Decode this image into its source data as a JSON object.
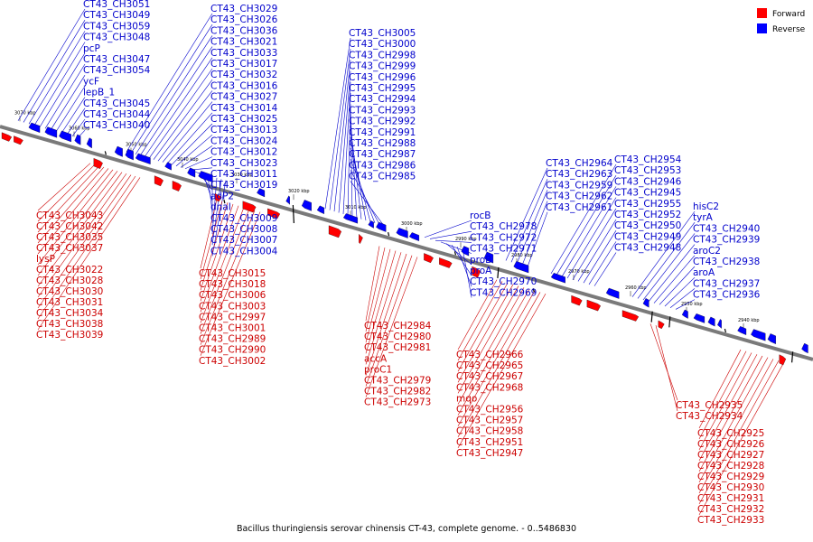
{
  "caption": "Bacillus thuringiensis serovar chinensis CT-43, complete genome. - 0..5486830",
  "legend": {
    "forward": "Forward",
    "reverse": "Reverse",
    "forward_color": "#ff0000",
    "reverse_color": "#0000ff"
  },
  "colors": {
    "forward_label": "#cc0000",
    "reverse_label": "#0000cc",
    "backbone": "#7a7a7a"
  },
  "ticks": [
    "3070 kbp",
    "3060 kbp",
    "3050 kbp",
    "3040 kbp",
    "3030 kbp",
    "3020 kbp",
    "3010 kbp",
    "3000 kbp",
    "2990 kbp",
    "2980 kbp",
    "2970 kbp",
    "2960 kbp",
    "2950 kbp",
    "2940 kbp"
  ],
  "top_labels": [
    "CT43_CH3051",
    "CT43_CH3049",
    "CT43_CH3059",
    "CT43_CH3048",
    "pcP",
    "CT43_CH3047",
    "CT43_CH3054",
    "ycF",
    "lepB_1",
    "CT43_CH3045",
    "CT43_CH3044",
    "CT43_CH3040",
    "CT43_CH3029",
    "CT43_CH3026",
    "CT43_CH3036",
    "CT43_CH3021",
    "CT43_CH3033",
    "CT43_CH3017",
    "CT43_CH3032",
    "CT43_CH3016",
    "CT43_CH3027",
    "CT43_CH3014",
    "CT43_CH3025",
    "CT43_CH3013",
    "CT43_CH3024",
    "CT43_CH3012",
    "CT43_CH3023",
    "CT43_CH3011",
    "CT43_CH3019",
    "adP2",
    "dnaI",
    "CT43_CH3009",
    "CT43_CH3008",
    "CT43_CH3007",
    "CT43_CH3004",
    "CT43_CH3005",
    "CT43_CH3000",
    "CT43_CH2998",
    "CT43_CH2999",
    "CT43_CH2996",
    "CT43_CH2995",
    "CT43_CH2994",
    "CT43_CH2993",
    "CT43_CH2992",
    "CT43_CH2991",
    "CT43_CH2988",
    "CT43_CH2987",
    "CT43_CH2986",
    "CT43_CH2985",
    "rocB",
    "CT43_CH2978",
    "CT43_CH2972",
    "CT43_CH2971",
    "proB",
    "proA",
    "CT43_CH2970",
    "CT43_CH2969",
    "CT43_CH2964",
    "CT43_CH2963",
    "CT43_CH2959",
    "CT43_CH2962",
    "CT43_CH2961",
    "CT43_CH2954",
    "CT43_CH2953",
    "CT43_CH2946",
    "CT43_CH2945",
    "CT43_CH2955",
    "CT43_CH2952",
    "CT43_CH2950",
    "CT43_CH2949",
    "CT43_CH2948",
    "hisC2",
    "tyrA",
    "CT43_CH2940",
    "CT43_CH2939",
    "aroC2",
    "CT43_CH2938",
    "aroA",
    "CT43_CH2937",
    "CT43_CH2936"
  ],
  "bottom_labels": [
    "CT43_CH3043",
    "CT43_CH3042",
    "CT43_CH3035",
    "CT43_CH3037",
    "lysP",
    "CT43_CH3022",
    "CT43_CH3028",
    "CT43_CH3030",
    "CT43_CH3031",
    "CT43_CH3034",
    "CT43_CH3038",
    "CT43_CH3039",
    "CT43_CH3015",
    "CT43_CH3018",
    "CT43_CH3006",
    "CT43_CH3003",
    "CT43_CH2997",
    "CT43_CH3001",
    "CT43_CH2989",
    "CT43_CH2990",
    "CT43_CH3002",
    "CT43_CH2984",
    "CT43_CH2980",
    "CT43_CH2981",
    "accA",
    "proC1",
    "CT43_CH2979",
    "CT43_CH2982",
    "CT43_CH2973",
    "CT43_CH2966",
    "CT43_CH2965",
    "CT43_CH2967",
    "CT43_CH2968",
    "mqo",
    "CT43_CH2956",
    "CT43_CH2957",
    "CT43_CH2958",
    "CT43_CH2951",
    "CT43_CH2947",
    "CT43_CH2935",
    "CT43_CH2934",
    "CT43_CH2925",
    "CT43_CH2926",
    "CT43_CH2927",
    "CT43_CH2928",
    "CT43_CH2929",
    "CT43_CH2930",
    "CT43_CH2931",
    "CT43_CH2932",
    "CT43_CH2933"
  ]
}
